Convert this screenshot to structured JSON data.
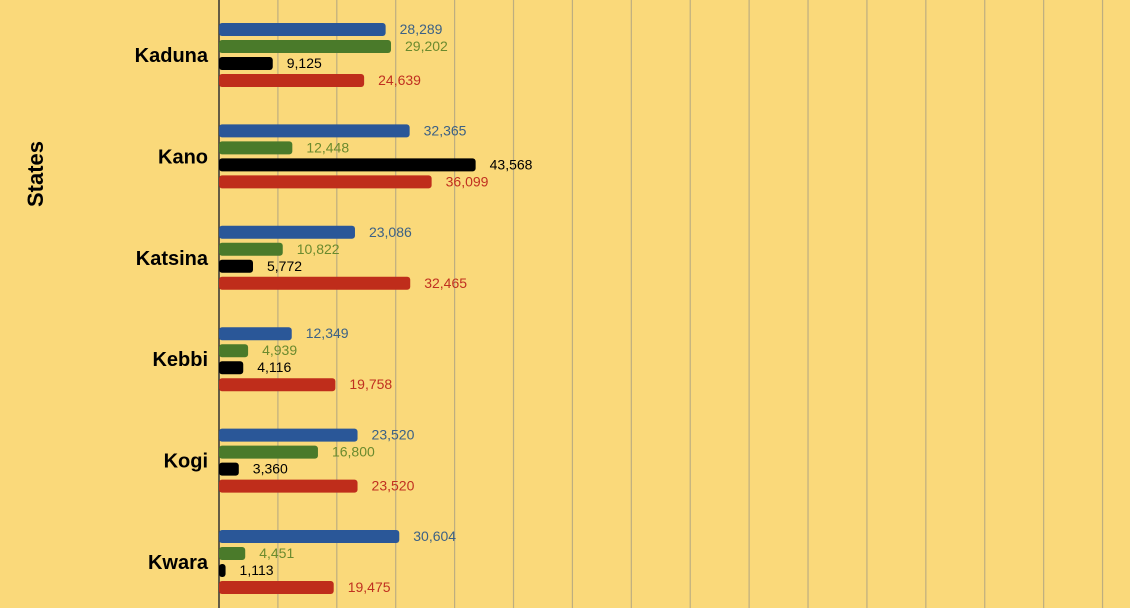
{
  "chart_data": {
    "type": "bar",
    "orientation": "horizontal",
    "ylabel": "States",
    "categories": [
      "Kaduna",
      "Kano",
      "Katsina",
      "Kebbi",
      "Kogi",
      "Kwara"
    ],
    "xlim": [
      0,
      155000
    ],
    "x_gridline_step": 10000,
    "grid": true,
    "series": [
      {
        "color": "#2A5798",
        "label_color": "#3C6185",
        "values": [
          28289,
          32365,
          23086,
          12349,
          23520,
          30604
        ],
        "value_labels": [
          "28,289",
          "32,365",
          "23,086",
          "12,349",
          "23,520",
          "30,604"
        ]
      },
      {
        "color": "#4A7A2A",
        "label_color": "#6A8A2E",
        "values": [
          29202,
          12448,
          10822,
          4939,
          16800,
          4451
        ],
        "value_labels": [
          "29,202",
          "12,448",
          "10,822",
          "4,939",
          "16,800",
          "4,451"
        ]
      },
      {
        "color": "#000000",
        "label_color": "#000000",
        "values": [
          9125,
          43568,
          5772,
          4116,
          3360,
          1113
        ],
        "value_labels": [
          "9,125",
          "43,568",
          "5,772",
          "4,116",
          "3,360",
          "1,113"
        ]
      },
      {
        "color": "#BF2D1B",
        "label_color": "#C03020",
        "values": [
          24639,
          36099,
          32465,
          19758,
          23520,
          19475
        ],
        "value_labels": [
          "24,639",
          "36,099",
          "32,465",
          "19,758",
          "23,520",
          "19,475"
        ]
      }
    ]
  }
}
